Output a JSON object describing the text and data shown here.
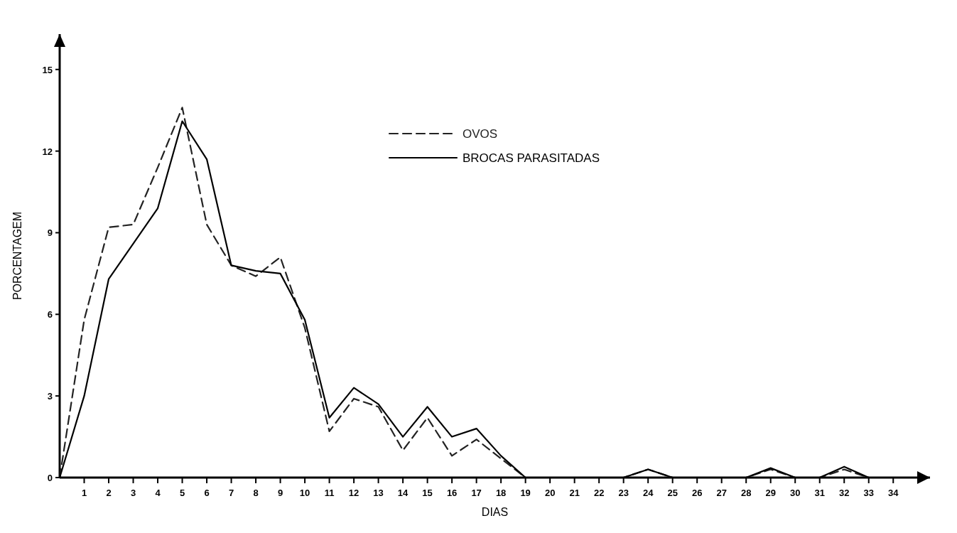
{
  "chart_data": {
    "type": "line",
    "xlabel": "DIAS",
    "ylabel": "PORCENTAGEM",
    "x": [
      0,
      1,
      2,
      3,
      4,
      5,
      6,
      7,
      8,
      9,
      10,
      11,
      12,
      13,
      14,
      15,
      16,
      17,
      18,
      19,
      20,
      21,
      22,
      23,
      24,
      25,
      26,
      27,
      28,
      29,
      30,
      31,
      32,
      33
    ],
    "xlim": [
      0,
      35.5
    ],
    "xticks": [
      1,
      2,
      3,
      4,
      5,
      6,
      7,
      8,
      9,
      10,
      11,
      12,
      13,
      14,
      15,
      16,
      17,
      18,
      19,
      20,
      21,
      22,
      23,
      24,
      25,
      26,
      27,
      28,
      29,
      30,
      31,
      32,
      33,
      34
    ],
    "ylim": [
      0,
      16.3
    ],
    "yticks": [
      0,
      3,
      6,
      9,
      12,
      15
    ],
    "grid": false,
    "legend": "top",
    "marker": "none",
    "series": [
      {
        "name": "OVOS",
        "color": "#222222",
        "line_style": "dashed",
        "values": [
          0,
          5.8,
          9.2,
          9.3,
          11.4,
          13.6,
          9.3,
          7.8,
          7.4,
          8.1,
          5.5,
          1.7,
          2.9,
          2.6,
          1.0,
          2.2,
          0.8,
          1.4,
          0.7,
          0,
          0,
          0,
          0,
          0,
          0.3,
          0,
          0,
          0,
          0,
          0.3,
          0,
          0,
          0.3,
          0
        ]
      },
      {
        "name": "BROCAS PARASITADAS",
        "color": "#000000",
        "line_style": "solid",
        "values": [
          0,
          3.0,
          7.3,
          8.6,
          9.9,
          13.1,
          11.7,
          7.8,
          7.6,
          7.5,
          5.8,
          2.2,
          3.3,
          2.7,
          1.5,
          2.6,
          1.5,
          1.8,
          0.8,
          0,
          0,
          0,
          0,
          0,
          0.3,
          0,
          0,
          0,
          0,
          0.35,
          0,
          0,
          0.4,
          0
        ]
      }
    ]
  }
}
